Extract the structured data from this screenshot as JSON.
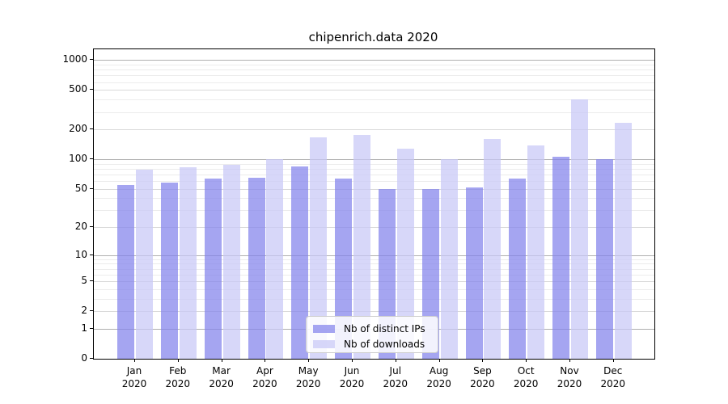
{
  "title": "chipenrich.data 2020",
  "chart_data": {
    "type": "bar",
    "title": "chipenrich.data 2020",
    "categories": [
      "Jan",
      "Feb",
      "Mar",
      "Apr",
      "May",
      "Jun",
      "Jul",
      "Aug",
      "Sep",
      "Oct",
      "Nov",
      "Dec"
    ],
    "category_year": "2020",
    "series": [
      {
        "name": "Nb of distinct IPs",
        "color": "#8282ec",
        "values": [
          55,
          58,
          63,
          65,
          85,
          64,
          50,
          50,
          52,
          64,
          106,
          100
        ]
      },
      {
        "name": "Nb of downloads",
        "color": "#c8c8f7",
        "values": [
          78,
          83,
          87,
          100,
          166,
          176,
          127,
          100,
          160,
          138,
          400,
          232
        ]
      }
    ],
    "yscale": "log10(value+1)",
    "yticks": [
      0,
      1,
      2,
      5,
      10,
      20,
      50,
      100,
      200,
      500,
      1000
    ],
    "ylim": [
      0,
      1280
    ],
    "xlabel": "",
    "ylabel": "",
    "grid": true,
    "legend_position": "bottom-center-inside",
    "bar_opacity": 0.72,
    "grid_color_major": "#b0b0b0",
    "grid_color_labeled": "#d9d9d9",
    "grid_color_minor": "#ececec"
  }
}
